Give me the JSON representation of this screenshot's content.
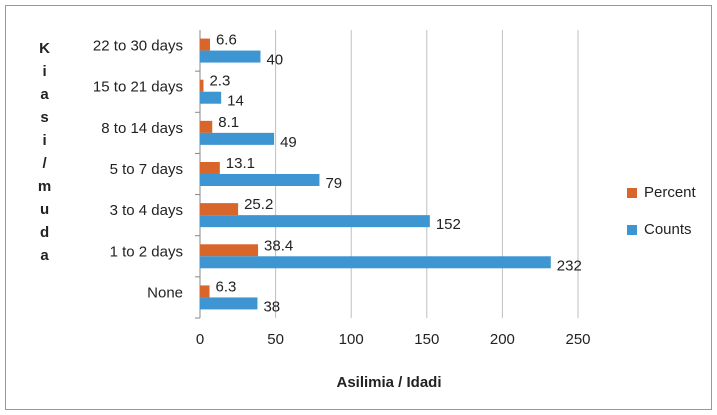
{
  "chart_data": {
    "type": "hbar",
    "x_label": "Asilimia / Idadi",
    "y_label": "Kiasi/muda",
    "categories": [
      "None",
      "1 to 2 days",
      "3 to 4 days",
      "5 to 7 days",
      "8 to 14 days",
      "15 to 21 days",
      "22 to 30 days"
    ],
    "series": [
      {
        "name": "Percent",
        "color": "#d8652a",
        "values": [
          6.3,
          38.4,
          25.2,
          13.1,
          8.1,
          2.3,
          6.6
        ]
      },
      {
        "name": "Counts",
        "color": "#3d95d1",
        "values": [
          38,
          232,
          152,
          79,
          49,
          14,
          40
        ]
      }
    ],
    "xlim": [
      0,
      250
    ],
    "xticks": [
      0,
      50,
      100,
      150,
      200,
      250
    ],
    "grid": true,
    "legend": "right"
  }
}
